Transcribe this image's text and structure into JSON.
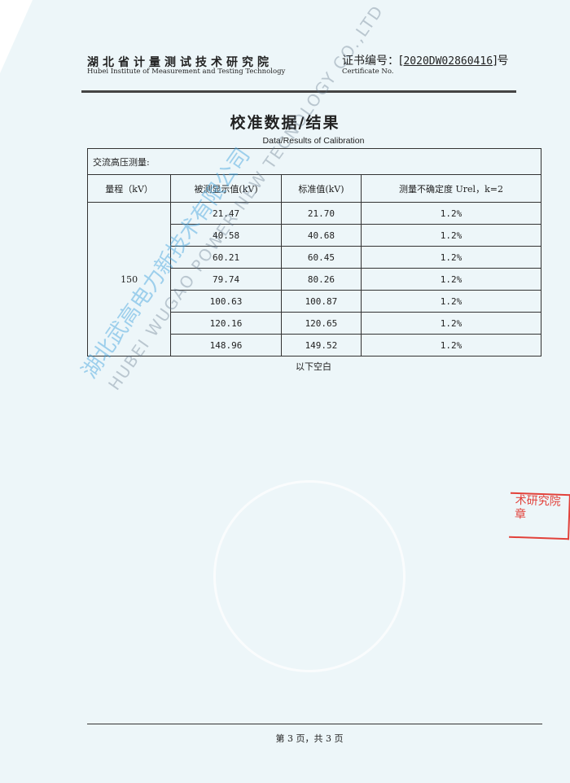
{
  "header": {
    "org_cn": "湖北省计量测试技术研究院",
    "org_en": "Hubei Institute of Measurement and Testing Technology",
    "cert_label": "证书编号：",
    "cert_number": "2020DW02860416",
    "cert_suffix": "号",
    "cert_en": "Certificate No."
  },
  "title": "校准数据/结果",
  "subtitle": "Data/Results of Calibration",
  "table": {
    "section": "交流高压测量:",
    "headers": [
      "量程（kV）",
      "被测显示值(kV)",
      "标准值(kV)",
      "测量不确定度 Urel，k=2"
    ],
    "range": "150",
    "rows": [
      {
        "measured": "21.47",
        "standard": "21.70",
        "uncertainty": "1.2%"
      },
      {
        "measured": "40.58",
        "standard": "40.68",
        "uncertainty": "1.2%"
      },
      {
        "measured": "60.21",
        "standard": "60.45",
        "uncertainty": "1.2%"
      },
      {
        "measured": "79.74",
        "standard": "80.26",
        "uncertainty": "1.2%"
      },
      {
        "measured": "100.63",
        "standard": "100.87",
        "uncertainty": "1.2%"
      },
      {
        "measured": "120.16",
        "standard": "120.65",
        "uncertainty": "1.2%"
      },
      {
        "measured": "148.96",
        "standard": "149.52",
        "uncertainty": "1.2%"
      }
    ]
  },
  "below_blank": "以下空白",
  "footer": {
    "page": "第 3 页，共 3 页"
  },
  "stamp": {
    "line1": "术研究院",
    "line2": "章"
  },
  "watermark": {
    "cn": "湖北武高电力新技术有限公司",
    "en": "HUBEI WUGAO POWER NEW TECNOLOGY CO.,LTD"
  },
  "colors": {
    "paper": "#edf6f9",
    "stamp": "#e2413a",
    "watermark": "#3ca0dc"
  }
}
